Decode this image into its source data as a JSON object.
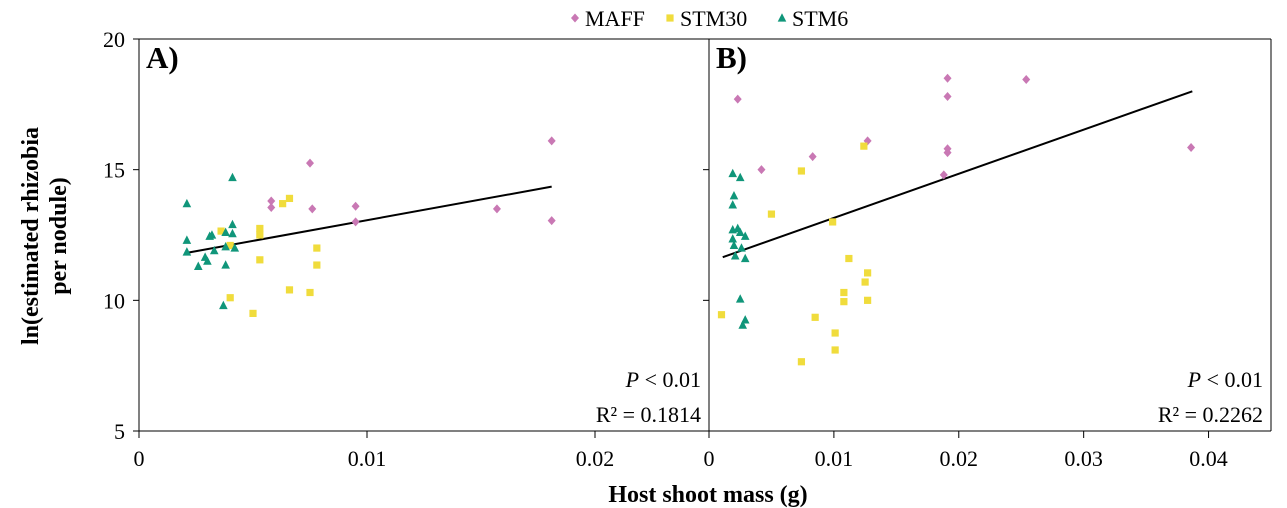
{
  "legend": {
    "placement": "top-center",
    "entries": [
      {
        "label": "MAFF",
        "color": "#c978b4",
        "marker": "diamond"
      },
      {
        "label": "STM30",
        "color": "#f0dc3c",
        "marker": "square"
      },
      {
        "label": "STM6",
        "color": "#10967a",
        "marker": "triangle"
      }
    ]
  },
  "ylabel_lines": [
    "ln(estimated rhizobia",
    "per nodule)"
  ],
  "xlabel": "Host shoot mass (g)",
  "chart_data": [
    {
      "type": "scatter",
      "panel_label": "A)",
      "xlim": [
        0,
        0.025
      ],
      "ylim": [
        5,
        20
      ],
      "xticks": [
        0,
        0.01,
        0.02
      ],
      "xtick_labels": [
        "0",
        "0.01",
        "0.02"
      ],
      "yticks": [
        5,
        10,
        15,
        20
      ],
      "ytick_labels": [
        "5",
        "10",
        "15",
        "20"
      ],
      "grid": false,
      "stats": {
        "p_label": "P",
        "p_text": " < 0.01",
        "r2_text": "R² = 0.1814"
      },
      "trendline": {
        "x": [
          0.002,
          0.0181
        ],
        "y": [
          11.8,
          14.35
        ]
      },
      "series": [
        {
          "name": "MAFF",
          "color": "#c978b4",
          "marker": "diamond",
          "points": [
            [
              0.0058,
              13.8
            ],
            [
              0.0058,
              13.55
            ],
            [
              0.0075,
              15.25
            ],
            [
              0.0076,
              13.5
            ],
            [
              0.0095,
              13.6
            ],
            [
              0.0095,
              13.0
            ],
            [
              0.0157,
              13.5
            ],
            [
              0.0181,
              16.1
            ],
            [
              0.0181,
              13.05
            ]
          ]
        },
        {
          "name": "STM30",
          "color": "#f0dc3c",
          "marker": "square",
          "points": [
            [
              0.0036,
              12.65
            ],
            [
              0.004,
              12.1
            ],
            [
              0.004,
              10.1
            ],
            [
              0.005,
              9.5
            ],
            [
              0.0053,
              12.75
            ],
            [
              0.0053,
              12.5
            ],
            [
              0.0053,
              11.55
            ],
            [
              0.0063,
              13.7
            ],
            [
              0.0066,
              13.9
            ],
            [
              0.0066,
              10.4
            ],
            [
              0.0075,
              10.3
            ],
            [
              0.0078,
              12.0
            ],
            [
              0.0078,
              11.35
            ]
          ]
        },
        {
          "name": "STM6",
          "color": "#10967a",
          "marker": "triangle",
          "points": [
            [
              0.0021,
              13.7
            ],
            [
              0.0021,
              12.3
            ],
            [
              0.0021,
              11.85
            ],
            [
              0.0026,
              11.3
            ],
            [
              0.0029,
              11.65
            ],
            [
              0.003,
              11.5
            ],
            [
              0.0031,
              12.45
            ],
            [
              0.0032,
              12.5
            ],
            [
              0.0033,
              11.9
            ],
            [
              0.0038,
              12.6
            ],
            [
              0.0038,
              12.05
            ],
            [
              0.0038,
              11.35
            ],
            [
              0.0037,
              9.8
            ],
            [
              0.0041,
              14.7
            ],
            [
              0.0041,
              12.9
            ],
            [
              0.0041,
              12.55
            ],
            [
              0.0042,
              12.0
            ]
          ]
        }
      ]
    },
    {
      "type": "scatter",
      "panel_label": "B)",
      "xlim": [
        0,
        0.045
      ],
      "ylim": [
        5,
        20
      ],
      "xticks": [
        0,
        0.01,
        0.02,
        0.03,
        0.04
      ],
      "xtick_labels": [
        "0",
        "0.01",
        "0.02",
        "0.03",
        "0.04"
      ],
      "yticks": [
        5,
        10,
        15,
        20
      ],
      "ytick_labels": [
        "5",
        "10",
        "15",
        "20"
      ],
      "grid": false,
      "stats": {
        "p_label": "P",
        "p_text": " < 0.01",
        "r2_text": "R² = 0.2262"
      },
      "trendline": {
        "x": [
          0.0011,
          0.0387
        ],
        "y": [
          11.65,
          18.0
        ]
      },
      "series": [
        {
          "name": "MAFF",
          "color": "#c978b4",
          "marker": "diamond",
          "points": [
            [
              0.0023,
              17.7
            ],
            [
              0.0042,
              15.0
            ],
            [
              0.0083,
              15.5
            ],
            [
              0.0127,
              16.1
            ],
            [
              0.0188,
              14.8
            ],
            [
              0.0191,
              18.5
            ],
            [
              0.0191,
              17.8
            ],
            [
              0.0191,
              15.8
            ],
            [
              0.0191,
              15.65
            ],
            [
              0.0254,
              18.45
            ],
            [
              0.0386,
              15.85
            ]
          ]
        },
        {
          "name": "STM30",
          "color": "#f0dc3c",
          "marker": "square",
          "points": [
            [
              0.001,
              9.45
            ],
            [
              0.005,
              13.3
            ],
            [
              0.0074,
              14.95
            ],
            [
              0.0074,
              7.65
            ],
            [
              0.0085,
              9.35
            ],
            [
              0.0099,
              13.0
            ],
            [
              0.0101,
              8.75
            ],
            [
              0.0101,
              8.1
            ],
            [
              0.0108,
              10.3
            ],
            [
              0.0108,
              9.95
            ],
            [
              0.0112,
              11.6
            ],
            [
              0.0124,
              15.9
            ],
            [
              0.0125,
              10.7
            ],
            [
              0.0127,
              11.05
            ],
            [
              0.0127,
              10.0
            ]
          ]
        },
        {
          "name": "STM6",
          "color": "#10967a",
          "marker": "triangle",
          "points": [
            [
              0.0019,
              14.85
            ],
            [
              0.002,
              14.0
            ],
            [
              0.0019,
              13.65
            ],
            [
              0.0019,
              12.7
            ],
            [
              0.0019,
              12.35
            ],
            [
              0.002,
              12.1
            ],
            [
              0.0021,
              11.7
            ],
            [
              0.0023,
              12.75
            ],
            [
              0.0025,
              14.7
            ],
            [
              0.0025,
              12.6
            ],
            [
              0.0026,
              12.0
            ],
            [
              0.0029,
              12.45
            ],
            [
              0.0029,
              11.6
            ],
            [
              0.0025,
              10.05
            ],
            [
              0.0029,
              9.25
            ],
            [
              0.0027,
              9.05
            ]
          ]
        }
      ]
    }
  ]
}
